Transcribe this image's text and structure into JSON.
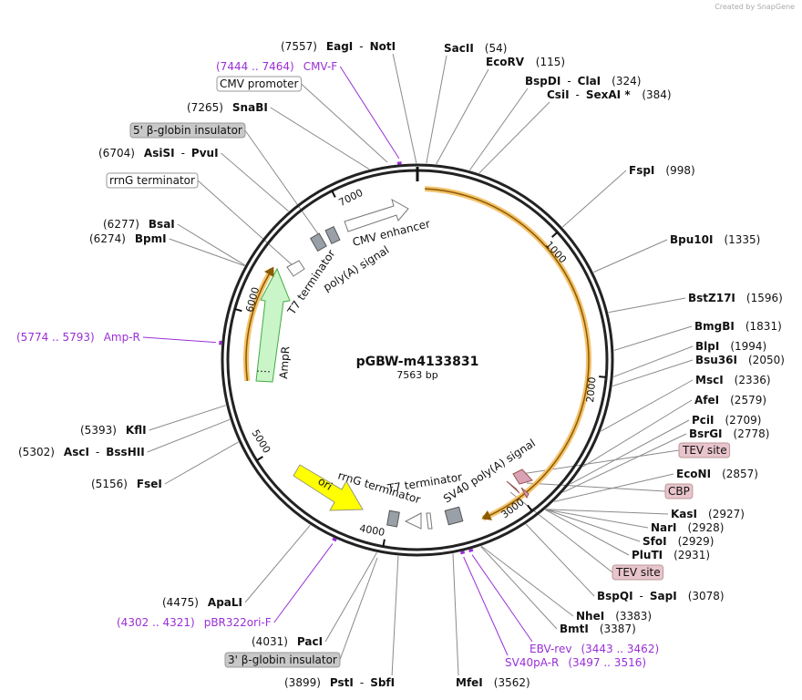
{
  "header": {
    "credit": "Created by SnapGene"
  },
  "map": {
    "name": "pGBW-m4133831",
    "length": "7563 bp",
    "ruler": [
      1000,
      2000,
      3000,
      4000,
      5000,
      6000,
      7000
    ],
    "features": [
      {
        "label": "CMV enhancer"
      },
      {
        "label": "T7 terminator"
      },
      {
        "label": "poly(A) signal"
      },
      {
        "label": "AmpR"
      },
      {
        "label": "ori"
      },
      {
        "label": "rrnG terminator"
      },
      {
        "label": "T7 terminator"
      },
      {
        "label": "SV40 poly(A) signal"
      }
    ],
    "sites": [
      {
        "names": [
          "SacII"
        ],
        "position": "(54)"
      },
      {
        "names": [
          "EcoRV"
        ],
        "position": "(115)"
      },
      {
        "names": [
          "BspDI",
          "-",
          "ClaI"
        ],
        "position": "(324)"
      },
      {
        "names": [
          "CsiI",
          "-",
          "SexAI *"
        ],
        "position": "(384)"
      },
      {
        "names": [
          "FspI"
        ],
        "position": "(998)"
      },
      {
        "names": [
          "Bpu10I"
        ],
        "position": "(1335)"
      },
      {
        "names": [
          "BstZ17I"
        ],
        "position": "(1596)"
      },
      {
        "names": [
          "BmgBI"
        ],
        "position": "(1831)"
      },
      {
        "names": [
          "BlpI"
        ],
        "position": "(1994)"
      },
      {
        "names": [
          "Bsu36I"
        ],
        "position": "(2050)"
      },
      {
        "names": [
          "MscI"
        ],
        "position": "(2336)"
      },
      {
        "names": [
          "AfeI"
        ],
        "position": "(2579)"
      },
      {
        "names": [
          "PciI"
        ],
        "position": "(2709)"
      },
      {
        "names": [
          "BsrGI"
        ],
        "position": "(2778)"
      },
      {
        "names": [
          "EcoNI"
        ],
        "position": "(2857)"
      },
      {
        "names": [
          "KasI"
        ],
        "position": "(2927)"
      },
      {
        "names": [
          "NarI"
        ],
        "position": "(2928)"
      },
      {
        "names": [
          "SfoI"
        ],
        "position": "(2929)"
      },
      {
        "names": [
          "PluTI"
        ],
        "position": "(2931)"
      },
      {
        "names": [
          "BspQI",
          "-",
          "SapI"
        ],
        "position": "(3078)"
      },
      {
        "names": [
          "NheI"
        ],
        "position": "(3383)"
      },
      {
        "names": [
          "BmtI"
        ],
        "position": "(3387)"
      },
      {
        "names": [
          "MfeI"
        ],
        "position": "(3562)"
      },
      {
        "names": [
          "PstI",
          "-",
          "SbfI"
        ],
        "position": "(3899)"
      },
      {
        "names": [
          "PacI"
        ],
        "position": "(4031)"
      },
      {
        "names": [
          "ApaLI"
        ],
        "position": "(4475)"
      },
      {
        "names": [
          "FseI"
        ],
        "position": "(5156)"
      },
      {
        "names": [
          "AscI",
          "-",
          "BssHII"
        ],
        "position": "(5302)"
      },
      {
        "names": [
          "KflI"
        ],
        "position": "(5393)"
      },
      {
        "names": [
          "BsaI"
        ],
        "position": "(6277)"
      },
      {
        "names": [
          "BpmI"
        ],
        "position": "(6274)"
      },
      {
        "names": [
          "AsiSI",
          "-",
          "PvuI"
        ],
        "position": "(6704)"
      },
      {
        "names": [
          "SnaBI"
        ],
        "position": "(7265)"
      },
      {
        "names": [
          "EagI",
          "-",
          "NotI"
        ],
        "position": "(7557)"
      }
    ],
    "primers": [
      {
        "label": "CMV-F",
        "range": "(7444 .. 7464)"
      },
      {
        "label": "Amp-R",
        "range": "(5774 .. 5793)"
      },
      {
        "label": "pBR322ori-F",
        "range": "(4302 .. 4321)"
      },
      {
        "label": "EBV-rev",
        "range": "(3443 .. 3462)"
      },
      {
        "label": "SV40pA-R",
        "range": "(3497 .. 3516)"
      }
    ],
    "boxes": [
      {
        "label": "CMV promoter"
      },
      {
        "label": "5' β-globin insulator"
      },
      {
        "label": "rrnG terminator"
      },
      {
        "label": "TEV site"
      },
      {
        "label": "CBP"
      },
      {
        "label": "TEV site"
      },
      {
        "label": "3' β-globin insulator"
      }
    ]
  }
}
